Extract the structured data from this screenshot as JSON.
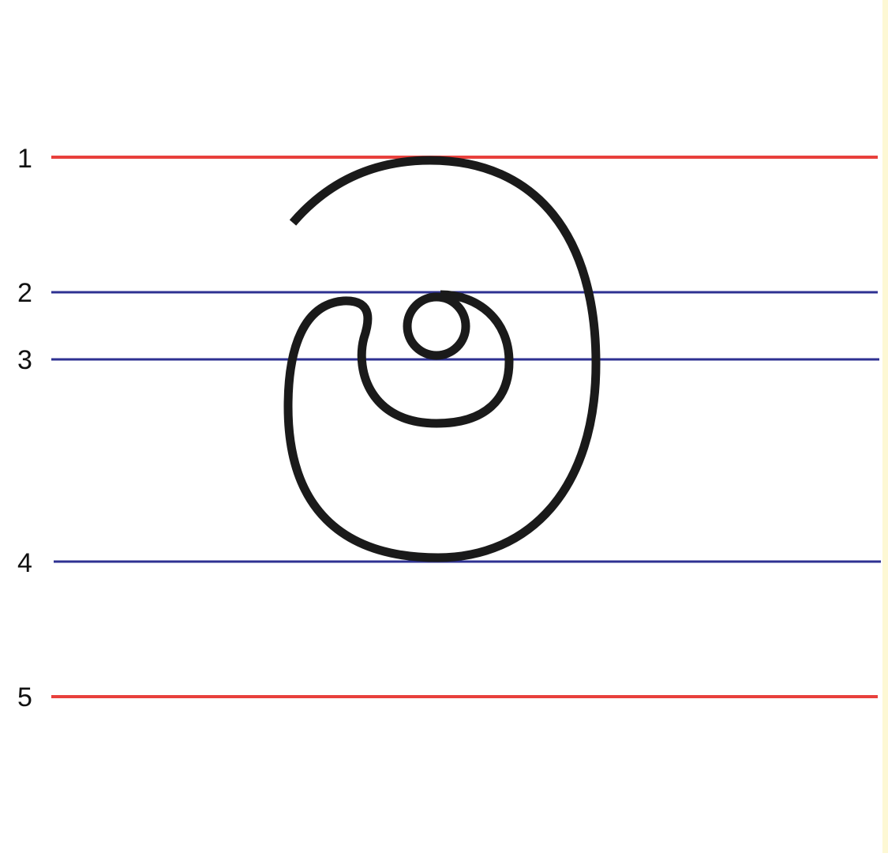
{
  "guide_lines": [
    {
      "label": "1",
      "color": "#e8403c"
    },
    {
      "label": "2",
      "color": "#2e3192"
    },
    {
      "label": "3",
      "color": "#2e3192"
    },
    {
      "label": "4",
      "color": "#2e3192"
    },
    {
      "label": "5",
      "color": "#e8403c"
    }
  ],
  "glyph": {
    "name": "handwriting-letter-stroke",
    "stroke_color": "#1a1a1a"
  },
  "colors": {
    "background": "#ffffff",
    "edge_strip": "#fdf8d4"
  }
}
